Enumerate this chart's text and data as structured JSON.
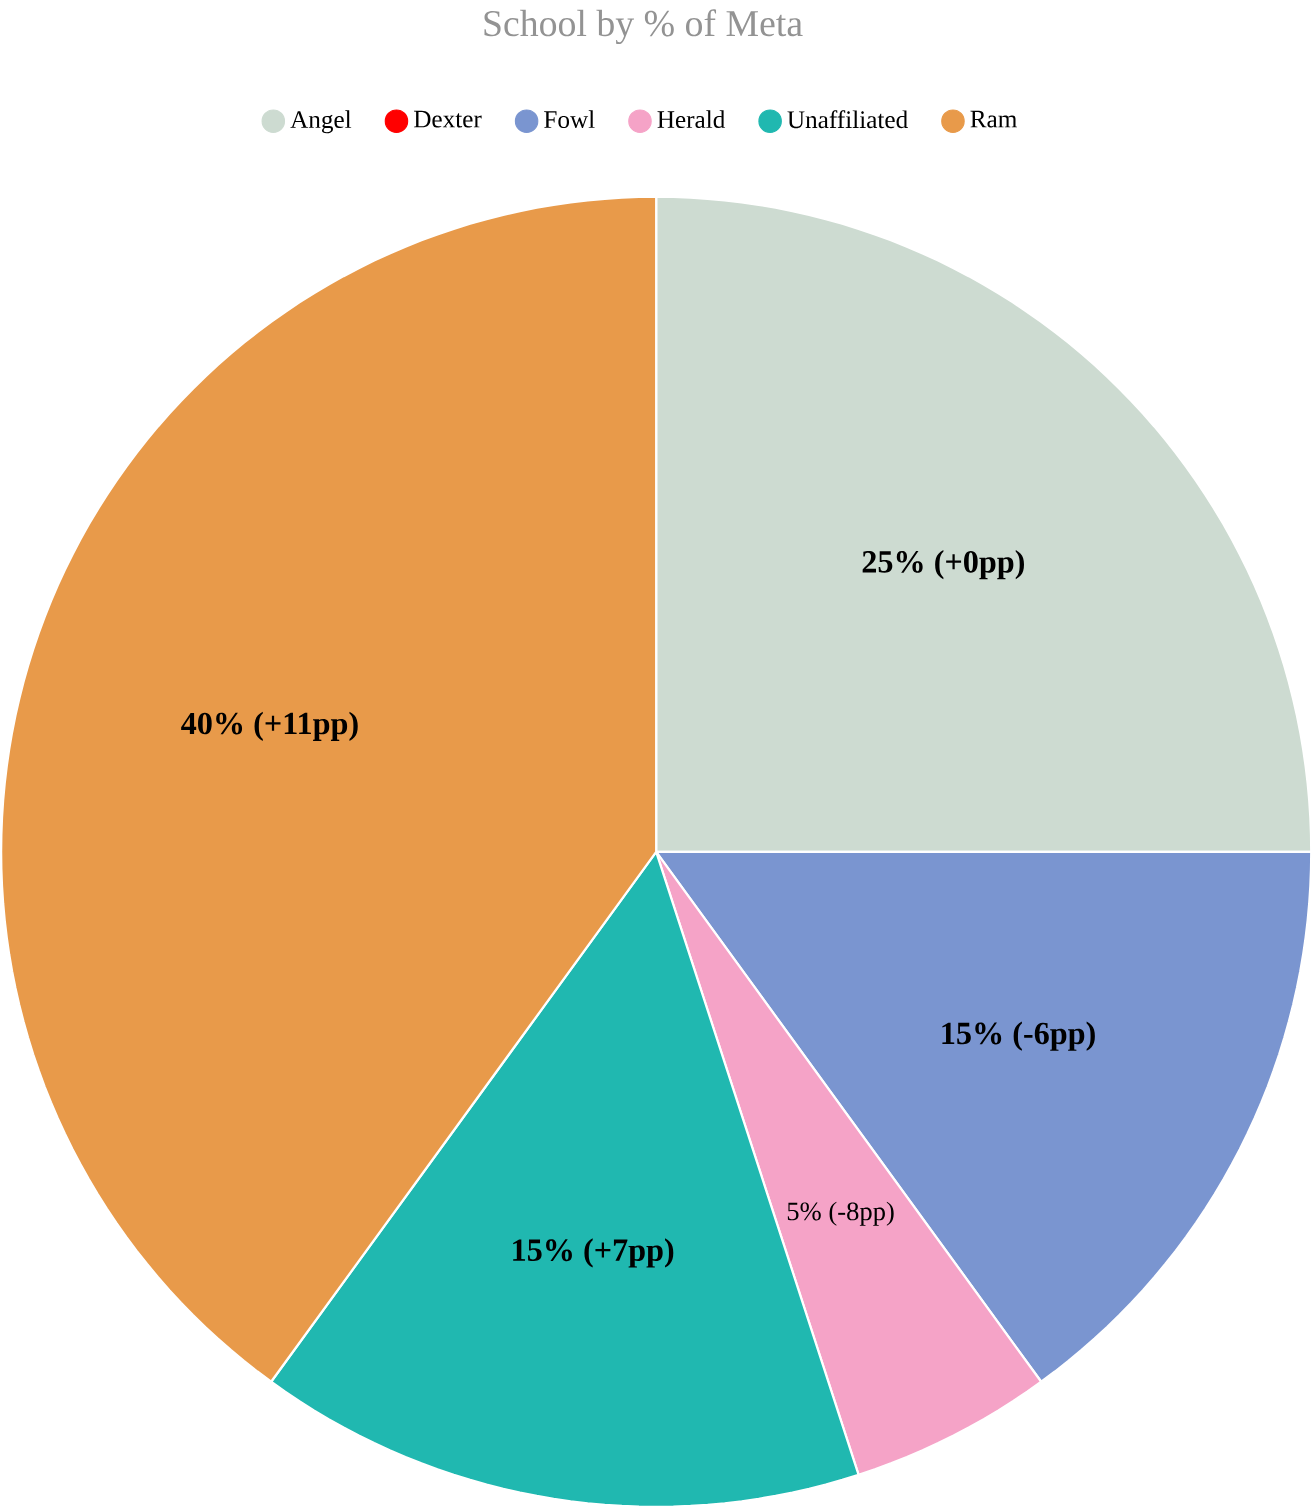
{
  "chart_data": {
    "type": "pie",
    "title": "School by % of Meta",
    "categories": [
      "Angel",
      "Dexter",
      "Fowl",
      "Herald",
      "Unaffiliated",
      "Ram"
    ],
    "values": [
      25,
      0,
      15,
      5,
      15,
      40
    ],
    "colors": [
      "#cddbd1",
      "#ff0000",
      "#7a95d0",
      "#f5a3c7",
      "#20b8b0",
      "#e89a4a"
    ],
    "value_labels": [
      "25% (+0pp)",
      null,
      "15% (-6pp)",
      "5% (-8pp)",
      "15% (+7pp)",
      "40% (+11pp)"
    ],
    "legend": "top"
  }
}
